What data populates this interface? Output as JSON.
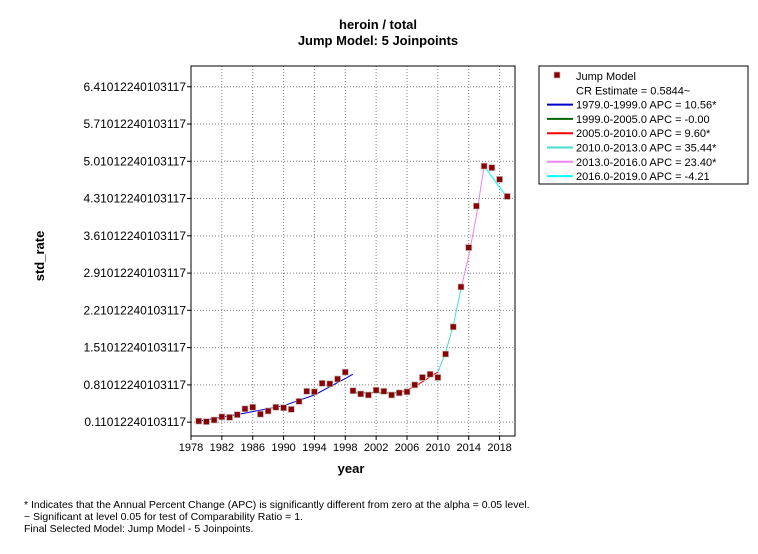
{
  "chart_data": {
    "type": "line",
    "title": "heroin / total",
    "subtitle": "Jump Model: 5 Joinpoints",
    "xlabel": "year",
    "ylabel": "std_rate",
    "xlim": [
      1978,
      2020
    ],
    "ylim": [
      -0.15,
      6.8
    ],
    "grid": true,
    "x_ticks": [
      1978,
      1982,
      1986,
      1990,
      1994,
      1998,
      2002,
      2006,
      2010,
      2014,
      2018
    ],
    "y_ticks": [
      0.11012240103117,
      0.81012240103117,
      1.51012240103117,
      2.21012240103117,
      2.91012240103117,
      3.61012240103117,
      4.31012240103117,
      5.01012240103117,
      5.71012240103117,
      6.41012240103117
    ],
    "y_tick_labels": [
      "0.1101224010311​7",
      "0.81012240103117",
      "1.51012240103117",
      "2.21012240103117",
      "2.91012240103117",
      "3.61012240103117",
      "4.31012240103117",
      "5.01012240103117",
      "5.71012240103117",
      "6.41012240103117"
    ],
    "legend_position": "top-right",
    "observed": {
      "name": "Jump Model",
      "color": "#8b0000",
      "points": [
        [
          1979,
          0.13
        ],
        [
          1980,
          0.12
        ],
        [
          1981,
          0.15
        ],
        [
          1982,
          0.21
        ],
        [
          1983,
          0.2
        ],
        [
          1984,
          0.25
        ],
        [
          1985,
          0.36
        ],
        [
          1986,
          0.39
        ],
        [
          1987,
          0.26
        ],
        [
          1988,
          0.32
        ],
        [
          1989,
          0.39
        ],
        [
          1990,
          0.38
        ],
        [
          1991,
          0.35
        ],
        [
          1992,
          0.5
        ],
        [
          1993,
          0.69
        ],
        [
          1994,
          0.68
        ],
        [
          1995,
          0.84
        ],
        [
          1996,
          0.83
        ],
        [
          1997,
          0.92
        ],
        [
          1998,
          1.05
        ],
        [
          1999,
          0.7
        ],
        [
          2000,
          0.64
        ],
        [
          2001,
          0.62
        ],
        [
          2002,
          0.71
        ],
        [
          2003,
          0.69
        ],
        [
          2004,
          0.62
        ],
        [
          2005,
          0.66
        ],
        [
          2006,
          0.68
        ],
        [
          2007,
          0.81
        ],
        [
          2008,
          0.95
        ],
        [
          2009,
          1.01
        ],
        [
          2010,
          0.95
        ],
        [
          2011,
          1.39
        ],
        [
          2012,
          1.9
        ],
        [
          2013,
          2.65
        ],
        [
          2014,
          3.39
        ],
        [
          2015,
          4.17
        ],
        [
          2016,
          4.92
        ],
        [
          2017,
          4.89
        ],
        [
          2018,
          4.67
        ],
        [
          2019,
          4.35
        ]
      ]
    },
    "cr_estimate": "CR Estimate = 0.5844~",
    "segments": [
      {
        "label": "1979.0-1999.0 APC  = 10.56*",
        "color": "#0000cc",
        "points": [
          [
            1979,
            0.13
          ],
          [
            1985,
            0.28
          ],
          [
            1990,
            0.42
          ],
          [
            1994,
            0.62
          ],
          [
            1998,
            0.93
          ],
          [
            1998.99,
            1.01
          ]
        ]
      },
      {
        "label": "1999.0-2005.0 APC  = -0.00",
        "color": "#006400",
        "points": [
          [
            1999,
            0.66
          ],
          [
            2005,
            0.66
          ]
        ]
      },
      {
        "label": "2005.0-2010.0 APC  =  9.60*",
        "color": "#ff0000",
        "points": [
          [
            2005,
            0.66
          ],
          [
            2007,
            0.78
          ],
          [
            2010,
            1.05
          ]
        ]
      },
      {
        "label": "2010.0-2013.0 APC  = 35.44*",
        "color": "#40e0d0",
        "points": [
          [
            2010,
            1.05
          ],
          [
            2011,
            1.42
          ],
          [
            2012,
            1.93
          ],
          [
            2013,
            2.62
          ]
        ]
      },
      {
        "label": "2013.0-2016.0 APC  = 23.40*",
        "color": "#ee82ee",
        "points": [
          [
            2013,
            2.62
          ],
          [
            2014,
            3.23
          ],
          [
            2015,
            3.98
          ],
          [
            2016,
            4.92
          ]
        ]
      },
      {
        "label": "2016.0-2019.0 APC  = -4.21",
        "color": "#00ffff",
        "points": [
          [
            2016,
            4.92
          ],
          [
            2017,
            4.72
          ],
          [
            2018,
            4.52
          ],
          [
            2019,
            4.33
          ]
        ]
      }
    ]
  },
  "footnotes": [
    "* Indicates that the Annual Percent Change (APC) is significantly different from zero at the alpha = 0.05 level.",
    "~ Significant at level 0.05 for test of Comparability Ratio = 1.",
    "Final Selected Model: Jump Model - 5 Joinpoints."
  ]
}
